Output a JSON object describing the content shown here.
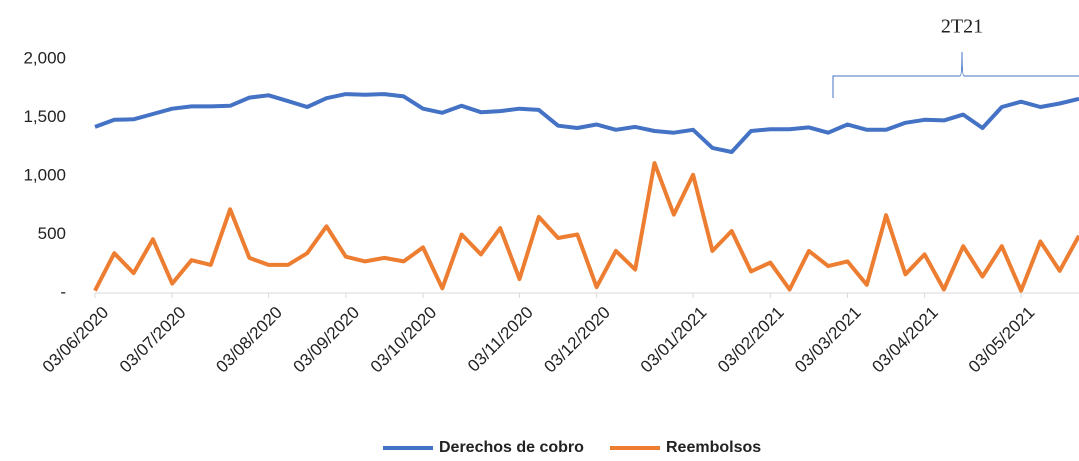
{
  "chart_data": {
    "type": "line",
    "annotation": "2T21",
    "categories": [
      "03/06/2020",
      null,
      null,
      null,
      "03/07/2020",
      null,
      null,
      null,
      null,
      "03/08/2020",
      null,
      null,
      null,
      "03/09/2020",
      null,
      null,
      null,
      "03/10/2020",
      null,
      null,
      null,
      null,
      "03/11/2020",
      null,
      null,
      null,
      "03/12/2020",
      null,
      null,
      null,
      null,
      "03/01/2021",
      null,
      null,
      null,
      "03/02/2021",
      null,
      null,
      null,
      "03/03/2021",
      null,
      null,
      null,
      "03/04/2021",
      null,
      null,
      null,
      null,
      "03/05/2021",
      null,
      null,
      null
    ],
    "series": [
      {
        "name": "Derechos de cobro",
        "color": "#4472c4",
        "values": [
          1420,
          1480,
          1485,
          1530,
          1575,
          1595,
          1595,
          1600,
          1670,
          1690,
          1640,
          1590,
          1665,
          1700,
          1695,
          1700,
          1680,
          1575,
          1540,
          1600,
          1545,
          1555,
          1575,
          1565,
          1430,
          1410,
          1440,
          1395,
          1420,
          1385,
          1370,
          1395,
          1240,
          1205,
          1385,
          1400,
          1400,
          1415,
          1370,
          1440,
          1395,
          1395,
          1455,
          1480,
          1475,
          1525,
          1410,
          1590,
          1635,
          1590,
          1620,
          1660
        ]
      },
      {
        "name": "Reembolsos",
        "color": "#ed7d31",
        "values": [
          20,
          340,
          170,
          460,
          80,
          280,
          240,
          715,
          300,
          240,
          240,
          340,
          570,
          310,
          270,
          300,
          270,
          390,
          40,
          500,
          330,
          555,
          120,
          650,
          470,
          500,
          50,
          360,
          200,
          1110,
          670,
          1010,
          360,
          530,
          185,
          260,
          30,
          360,
          230,
          270,
          70,
          665,
          160,
          330,
          30,
          400,
          140,
          400,
          20,
          440,
          190,
          490
        ]
      }
    ],
    "ylim": [
      0,
      2000
    ],
    "yticks": [
      {
        "value": 0,
        "label": "-"
      },
      500,
      {
        "value": 1000,
        "label": "1,000"
      },
      {
        "value": 1500,
        "label": "1,500"
      },
      {
        "value": 2000,
        "label": "2,000"
      }
    ],
    "grid": false,
    "legend": "bottom"
  }
}
